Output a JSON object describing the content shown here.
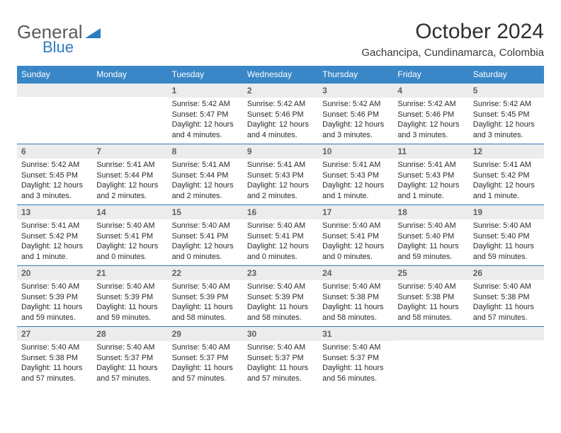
{
  "logo": {
    "part1": "General",
    "part2": "Blue"
  },
  "title": "October 2024",
  "location": "Gachancipa, Cundinamarca, Colombia",
  "columns": [
    "Sunday",
    "Monday",
    "Tuesday",
    "Wednesday",
    "Thursday",
    "Friday",
    "Saturday"
  ],
  "colors": {
    "header_bg": "#3a87c8",
    "header_fg": "#ffffff",
    "row_border": "#2f7bbf",
    "daynum_bg": "#ececec",
    "daynum_fg": "#616161",
    "logo_gray": "#5a5a5a",
    "logo_blue": "#2f7bbf",
    "title_color": "#303030"
  },
  "weeks": [
    [
      {
        "n": "",
        "sunrise": "",
        "sunset": "",
        "daylight": ""
      },
      {
        "n": "",
        "sunrise": "",
        "sunset": "",
        "daylight": ""
      },
      {
        "n": "1",
        "sunrise": "Sunrise: 5:42 AM",
        "sunset": "Sunset: 5:47 PM",
        "daylight": "Daylight: 12 hours and 4 minutes."
      },
      {
        "n": "2",
        "sunrise": "Sunrise: 5:42 AM",
        "sunset": "Sunset: 5:46 PM",
        "daylight": "Daylight: 12 hours and 4 minutes."
      },
      {
        "n": "3",
        "sunrise": "Sunrise: 5:42 AM",
        "sunset": "Sunset: 5:46 PM",
        "daylight": "Daylight: 12 hours and 3 minutes."
      },
      {
        "n": "4",
        "sunrise": "Sunrise: 5:42 AM",
        "sunset": "Sunset: 5:46 PM",
        "daylight": "Daylight: 12 hours and 3 minutes."
      },
      {
        "n": "5",
        "sunrise": "Sunrise: 5:42 AM",
        "sunset": "Sunset: 5:45 PM",
        "daylight": "Daylight: 12 hours and 3 minutes."
      }
    ],
    [
      {
        "n": "6",
        "sunrise": "Sunrise: 5:42 AM",
        "sunset": "Sunset: 5:45 PM",
        "daylight": "Daylight: 12 hours and 3 minutes."
      },
      {
        "n": "7",
        "sunrise": "Sunrise: 5:41 AM",
        "sunset": "Sunset: 5:44 PM",
        "daylight": "Daylight: 12 hours and 2 minutes."
      },
      {
        "n": "8",
        "sunrise": "Sunrise: 5:41 AM",
        "sunset": "Sunset: 5:44 PM",
        "daylight": "Daylight: 12 hours and 2 minutes."
      },
      {
        "n": "9",
        "sunrise": "Sunrise: 5:41 AM",
        "sunset": "Sunset: 5:43 PM",
        "daylight": "Daylight: 12 hours and 2 minutes."
      },
      {
        "n": "10",
        "sunrise": "Sunrise: 5:41 AM",
        "sunset": "Sunset: 5:43 PM",
        "daylight": "Daylight: 12 hours and 1 minute."
      },
      {
        "n": "11",
        "sunrise": "Sunrise: 5:41 AM",
        "sunset": "Sunset: 5:43 PM",
        "daylight": "Daylight: 12 hours and 1 minute."
      },
      {
        "n": "12",
        "sunrise": "Sunrise: 5:41 AM",
        "sunset": "Sunset: 5:42 PM",
        "daylight": "Daylight: 12 hours and 1 minute."
      }
    ],
    [
      {
        "n": "13",
        "sunrise": "Sunrise: 5:41 AM",
        "sunset": "Sunset: 5:42 PM",
        "daylight": "Daylight: 12 hours and 1 minute."
      },
      {
        "n": "14",
        "sunrise": "Sunrise: 5:40 AM",
        "sunset": "Sunset: 5:41 PM",
        "daylight": "Daylight: 12 hours and 0 minutes."
      },
      {
        "n": "15",
        "sunrise": "Sunrise: 5:40 AM",
        "sunset": "Sunset: 5:41 PM",
        "daylight": "Daylight: 12 hours and 0 minutes."
      },
      {
        "n": "16",
        "sunrise": "Sunrise: 5:40 AM",
        "sunset": "Sunset: 5:41 PM",
        "daylight": "Daylight: 12 hours and 0 minutes."
      },
      {
        "n": "17",
        "sunrise": "Sunrise: 5:40 AM",
        "sunset": "Sunset: 5:41 PM",
        "daylight": "Daylight: 12 hours and 0 minutes."
      },
      {
        "n": "18",
        "sunrise": "Sunrise: 5:40 AM",
        "sunset": "Sunset: 5:40 PM",
        "daylight": "Daylight: 11 hours and 59 minutes."
      },
      {
        "n": "19",
        "sunrise": "Sunrise: 5:40 AM",
        "sunset": "Sunset: 5:40 PM",
        "daylight": "Daylight: 11 hours and 59 minutes."
      }
    ],
    [
      {
        "n": "20",
        "sunrise": "Sunrise: 5:40 AM",
        "sunset": "Sunset: 5:39 PM",
        "daylight": "Daylight: 11 hours and 59 minutes."
      },
      {
        "n": "21",
        "sunrise": "Sunrise: 5:40 AM",
        "sunset": "Sunset: 5:39 PM",
        "daylight": "Daylight: 11 hours and 59 minutes."
      },
      {
        "n": "22",
        "sunrise": "Sunrise: 5:40 AM",
        "sunset": "Sunset: 5:39 PM",
        "daylight": "Daylight: 11 hours and 58 minutes."
      },
      {
        "n": "23",
        "sunrise": "Sunrise: 5:40 AM",
        "sunset": "Sunset: 5:39 PM",
        "daylight": "Daylight: 11 hours and 58 minutes."
      },
      {
        "n": "24",
        "sunrise": "Sunrise: 5:40 AM",
        "sunset": "Sunset: 5:38 PM",
        "daylight": "Daylight: 11 hours and 58 minutes."
      },
      {
        "n": "25",
        "sunrise": "Sunrise: 5:40 AM",
        "sunset": "Sunset: 5:38 PM",
        "daylight": "Daylight: 11 hours and 58 minutes."
      },
      {
        "n": "26",
        "sunrise": "Sunrise: 5:40 AM",
        "sunset": "Sunset: 5:38 PM",
        "daylight": "Daylight: 11 hours and 57 minutes."
      }
    ],
    [
      {
        "n": "27",
        "sunrise": "Sunrise: 5:40 AM",
        "sunset": "Sunset: 5:38 PM",
        "daylight": "Daylight: 11 hours and 57 minutes."
      },
      {
        "n": "28",
        "sunrise": "Sunrise: 5:40 AM",
        "sunset": "Sunset: 5:37 PM",
        "daylight": "Daylight: 11 hours and 57 minutes."
      },
      {
        "n": "29",
        "sunrise": "Sunrise: 5:40 AM",
        "sunset": "Sunset: 5:37 PM",
        "daylight": "Daylight: 11 hours and 57 minutes."
      },
      {
        "n": "30",
        "sunrise": "Sunrise: 5:40 AM",
        "sunset": "Sunset: 5:37 PM",
        "daylight": "Daylight: 11 hours and 57 minutes."
      },
      {
        "n": "31",
        "sunrise": "Sunrise: 5:40 AM",
        "sunset": "Sunset: 5:37 PM",
        "daylight": "Daylight: 11 hours and 56 minutes."
      },
      {
        "n": "",
        "sunrise": "",
        "sunset": "",
        "daylight": ""
      },
      {
        "n": "",
        "sunrise": "",
        "sunset": "",
        "daylight": ""
      }
    ]
  ]
}
